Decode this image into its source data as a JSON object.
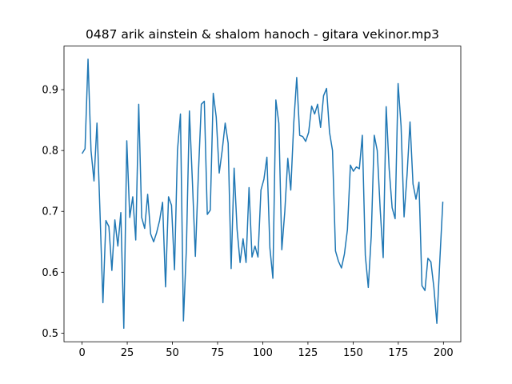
{
  "chart_data": {
    "type": "line",
    "title": "0487 arik ainstein & shalom hanoch - gitara vekinor.mp3",
    "x": [
      0,
      1.65,
      3.3,
      4.95,
      6.6,
      8.25,
      9.9,
      11.55,
      13.2,
      14.85,
      16.5,
      18.15,
      19.8,
      21.45,
      23.1,
      24.75,
      26.4,
      28.05,
      29.7,
      31.35,
      33,
      34.65,
      36.3,
      37.95,
      39.6,
      41.25,
      42.9,
      44.55,
      46.2,
      47.85,
      49.5,
      51.15,
      52.8,
      54.45,
      56.1,
      57.75,
      59.4,
      61.05,
      62.7,
      64.35,
      66,
      67.65,
      69.3,
      70.95,
      72.6,
      74.25,
      75.9,
      77.55,
      79.2,
      80.85,
      82.5,
      84.15,
      85.8,
      87.45,
      89.1,
      90.75,
      92.4,
      94.05,
      95.7,
      97.35,
      99,
      100.65,
      102.3,
      103.95,
      105.6,
      107.25,
      108.9,
      110.55,
      112.2,
      113.85,
      115.5,
      117.15,
      118.8,
      120.45,
      122.1,
      123.75,
      125.4,
      127.05,
      128.7,
      130.35,
      132,
      133.65,
      135.3,
      136.95,
      138.6,
      140.25,
      141.9,
      143.55,
      145.2,
      146.85,
      148.5,
      150.15,
      151.8,
      153.45,
      155.1,
      156.75,
      158.4,
      160.05,
      161.7,
      163.35,
      165,
      166.65,
      168.3,
      169.95,
      171.6,
      173.25,
      174.9,
      176.55,
      178.2,
      179.85,
      181.5,
      183.15,
      184.8,
      186.45,
      188.1,
      189.75,
      191.4,
      193.05,
      194.7,
      196.35,
      198,
      199.65
    ],
    "values": [
      0.795,
      0.803,
      0.95,
      0.8,
      0.75,
      0.845,
      0.7,
      0.55,
      0.685,
      0.675,
      0.603,
      0.686,
      0.643,
      0.698,
      0.508,
      0.816,
      0.69,
      0.724,
      0.653,
      0.876,
      0.69,
      0.672,
      0.728,
      0.663,
      0.65,
      0.665,
      0.685,
      0.715,
      0.576,
      0.724,
      0.71,
      0.604,
      0.8,
      0.86,
      0.52,
      0.64,
      0.865,
      0.75,
      0.626,
      0.76,
      0.876,
      0.881,
      0.695,
      0.702,
      0.894,
      0.855,
      0.763,
      0.8,
      0.845,
      0.812,
      0.606,
      0.771,
      0.67,
      0.616,
      0.655,
      0.616,
      0.739,
      0.625,
      0.643,
      0.625,
      0.735,
      0.753,
      0.789,
      0.64,
      0.59,
      0.883,
      0.845,
      0.637,
      0.7,
      0.787,
      0.735,
      0.845,
      0.92,
      0.825,
      0.823,
      0.815,
      0.83,
      0.873,
      0.86,
      0.876,
      0.838,
      0.89,
      0.902,
      0.83,
      0.8,
      0.635,
      0.618,
      0.607,
      0.63,
      0.67,
      0.776,
      0.766,
      0.773,
      0.77,
      0.825,
      0.628,
      0.575,
      0.66,
      0.825,
      0.8,
      0.703,
      0.624,
      0.872,
      0.77,
      0.706,
      0.688,
      0.91,
      0.84,
      0.691,
      0.76,
      0.847,
      0.745,
      0.72,
      0.748,
      0.578,
      0.57,
      0.623,
      0.617,
      0.575,
      0.516,
      0.62,
      0.716
    ],
    "color": "#1f77b4",
    "xlim": [
      -10,
      209.6
    ],
    "xticks": [
      0,
      25,
      50,
      75,
      100,
      125,
      150,
      175,
      200
    ],
    "ylim": [
      0.4858,
      0.9716
    ],
    "yticks": [
      0.5,
      0.6,
      0.7,
      0.8,
      0.9
    ]
  }
}
